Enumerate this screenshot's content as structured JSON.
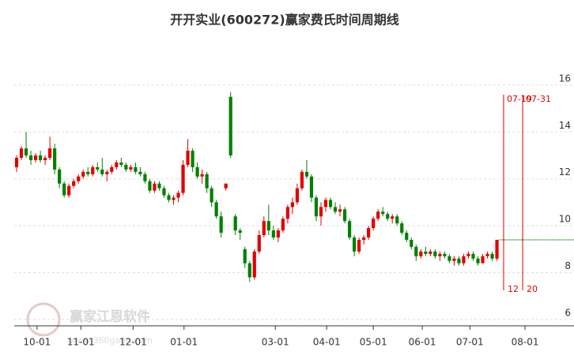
{
  "chart_data": {
    "type": "candlestick",
    "title": "开开实业(600272)赢家费氏时间周期线",
    "watermark": "赢家江恩软件",
    "watermark_url": "www.360gann.com",
    "up_color": "#e00000",
    "down_color": "#008000",
    "ylim": [
      5.73,
      17.95
    ],
    "yticks": [
      6,
      8,
      10,
      12,
      14,
      16
    ],
    "grid": true,
    "xlim": [
      0,
      117.7
    ],
    "xticks": [
      {
        "value": 4.8,
        "label": "10-01"
      },
      {
        "value": 14.0,
        "label": "11-01"
      },
      {
        "value": 25.0,
        "label": "12-01"
      },
      {
        "value": 35.7,
        "label": "01-01"
      },
      {
        "value": 54.9,
        "label": "03-01"
      },
      {
        "value": 65.7,
        "label": "04-01"
      },
      {
        "value": 75.5,
        "label": "05-01"
      },
      {
        "value": 85.8,
        "label": "06-01"
      },
      {
        "value": 95.8,
        "label": "07-01"
      },
      {
        "value": 107.4,
        "label": "08-01"
      }
    ],
    "ohlc": [
      [
        12.5,
        13.0,
        12.3,
        12.9
      ],
      [
        12.9,
        13.4,
        12.8,
        13.3
      ],
      [
        13.3,
        14.0,
        12.9,
        13.0
      ],
      [
        13.0,
        13.2,
        12.6,
        12.8
      ],
      [
        12.8,
        13.1,
        12.7,
        13.0
      ],
      [
        13.0,
        13.2,
        12.7,
        12.8
      ],
      [
        12.8,
        13.0,
        12.6,
        12.9
      ],
      [
        12.9,
        13.8,
        12.8,
        13.3
      ],
      [
        13.3,
        13.5,
        12.2,
        12.4
      ],
      [
        12.4,
        12.5,
        11.6,
        11.8
      ],
      [
        11.8,
        11.9,
        11.2,
        11.3
      ],
      [
        11.3,
        11.8,
        11.2,
        11.7
      ],
      [
        11.7,
        12.0,
        11.6,
        11.9
      ],
      [
        11.9,
        12.2,
        11.8,
        12.1
      ],
      [
        12.1,
        12.4,
        12.0,
        12.3
      ],
      [
        12.3,
        12.5,
        12.1,
        12.2
      ],
      [
        12.2,
        12.6,
        12.1,
        12.5
      ],
      [
        12.5,
        12.7,
        12.3,
        12.4
      ],
      [
        12.4,
        12.9,
        12.1,
        12.2
      ],
      [
        12.2,
        12.4,
        11.9,
        12.3
      ],
      [
        12.3,
        12.6,
        12.2,
        12.5
      ],
      [
        12.5,
        12.8,
        12.4,
        12.7
      ],
      [
        12.7,
        12.9,
        12.5,
        12.6
      ],
      [
        12.6,
        12.7,
        12.3,
        12.4
      ],
      [
        12.4,
        12.6,
        12.3,
        12.5
      ],
      [
        12.5,
        12.7,
        12.2,
        12.3
      ],
      [
        12.3,
        12.5,
        12.1,
        12.2
      ],
      [
        12.2,
        12.3,
        11.8,
        11.9
      ],
      [
        11.9,
        12.0,
        11.4,
        11.5
      ],
      [
        11.5,
        11.9,
        11.4,
        11.8
      ],
      [
        11.8,
        11.9,
        11.5,
        11.6
      ],
      [
        11.6,
        11.7,
        11.2,
        11.3
      ],
      [
        11.3,
        11.4,
        11.0,
        11.1
      ],
      [
        11.1,
        11.3,
        10.9,
        11.2
      ],
      [
        11.2,
        11.5,
        11.0,
        11.4
      ],
      [
        11.4,
        12.8,
        11.3,
        12.6
      ],
      [
        12.6,
        13.7,
        12.5,
        13.2
      ],
      [
        13.2,
        13.3,
        12.3,
        12.5
      ],
      [
        12.5,
        12.7,
        12.0,
        12.1
      ],
      [
        12.1,
        12.4,
        11.8,
        12.2
      ],
      [
        12.2,
        12.3,
        11.4,
        11.6
      ],
      [
        11.6,
        11.7,
        10.8,
        11.0
      ],
      [
        11.0,
        11.1,
        10.3,
        10.4
      ],
      [
        10.4,
        10.6,
        9.5,
        9.7
      ],
      [
        11.6,
        11.8,
        11.5,
        11.8
      ],
      [
        15.5,
        15.7,
        12.9,
        13.0
      ],
      [
        10.4,
        10.5,
        9.6,
        9.8
      ],
      [
        9.8,
        9.9,
        9.4,
        9.7
      ],
      [
        9.0,
        9.1,
        8.2,
        8.4
      ],
      [
        8.4,
        8.5,
        7.6,
        7.8
      ],
      [
        7.8,
        9.0,
        7.7,
        8.9
      ],
      [
        8.9,
        9.8,
        8.8,
        9.6
      ],
      [
        9.6,
        10.4,
        9.5,
        10.2
      ],
      [
        10.2,
        10.9,
        9.6,
        9.8
      ],
      [
        9.8,
        10.0,
        9.4,
        9.5
      ],
      [
        9.5,
        9.9,
        9.3,
        9.8
      ],
      [
        9.8,
        10.4,
        9.7,
        10.3
      ],
      [
        10.3,
        10.9,
        10.1,
        10.8
      ],
      [
        10.8,
        11.2,
        10.5,
        11.0
      ],
      [
        11.0,
        11.8,
        10.9,
        11.6
      ],
      [
        11.6,
        12.4,
        11.5,
        12.3
      ],
      [
        12.3,
        12.8,
        12.0,
        12.1
      ],
      [
        12.1,
        12.2,
        11.0,
        11.2
      ],
      [
        11.2,
        11.3,
        10.2,
        10.4
      ],
      [
        10.4,
        11.0,
        10.0,
        10.8
      ],
      [
        10.8,
        11.2,
        10.6,
        11.1
      ],
      [
        11.1,
        11.2,
        10.7,
        10.8
      ],
      [
        10.8,
        11.0,
        10.5,
        10.6
      ],
      [
        10.6,
        10.9,
        10.4,
        10.7
      ],
      [
        10.7,
        10.8,
        10.1,
        10.2
      ],
      [
        10.2,
        10.3,
        9.4,
        9.5
      ],
      [
        9.5,
        9.6,
        8.7,
        8.9
      ],
      [
        8.9,
        9.5,
        8.8,
        9.4
      ],
      [
        9.4,
        9.6,
        9.2,
        9.5
      ],
      [
        9.5,
        10.0,
        9.4,
        9.9
      ],
      [
        9.9,
        10.4,
        9.8,
        10.3
      ],
      [
        10.3,
        10.7,
        10.2,
        10.6
      ],
      [
        10.6,
        10.8,
        10.4,
        10.5
      ],
      [
        10.5,
        10.6,
        10.2,
        10.3
      ],
      [
        10.3,
        10.5,
        10.1,
        10.4
      ],
      [
        10.4,
        10.5,
        10.0,
        10.1
      ],
      [
        10.1,
        10.2,
        9.6,
        9.7
      ],
      [
        9.7,
        9.8,
        9.3,
        9.4
      ],
      [
        9.4,
        9.5,
        9.0,
        9.1
      ],
      [
        9.1,
        9.2,
        8.5,
        8.7
      ],
      [
        8.7,
        9.0,
        8.6,
        8.9
      ],
      [
        8.9,
        9.1,
        8.7,
        8.8
      ],
      [
        8.8,
        9.0,
        8.7,
        8.9
      ],
      [
        8.9,
        9.0,
        8.6,
        8.7
      ],
      [
        8.7,
        8.9,
        8.5,
        8.8
      ],
      [
        8.8,
        8.9,
        8.6,
        8.7
      ],
      [
        8.7,
        8.8,
        8.4,
        8.5
      ],
      [
        8.5,
        8.7,
        8.3,
        8.6
      ],
      [
        8.6,
        8.7,
        8.3,
        8.4
      ],
      [
        8.4,
        8.8,
        8.3,
        8.7
      ],
      [
        8.7,
        8.9,
        8.6,
        8.8
      ],
      [
        8.8,
        8.9,
        8.5,
        8.6
      ],
      [
        8.6,
        8.7,
        8.3,
        8.4
      ],
      [
        8.4,
        8.8,
        8.4,
        8.7
      ],
      [
        8.7,
        8.9,
        8.6,
        8.8
      ],
      [
        8.8,
        8.9,
        8.5,
        8.6
      ],
      [
        8.6,
        9.4,
        8.5,
        9.4
      ]
    ],
    "cycle_lines": [
      {
        "label": "07-19",
        "x": 102.9,
        "count": 12
      },
      {
        "label": "07-31",
        "x": 106.9,
        "count": 20
      }
    ],
    "cycle_color": "#e00000",
    "ref_line": {
      "value": 9.4,
      "color": "#008000"
    }
  }
}
